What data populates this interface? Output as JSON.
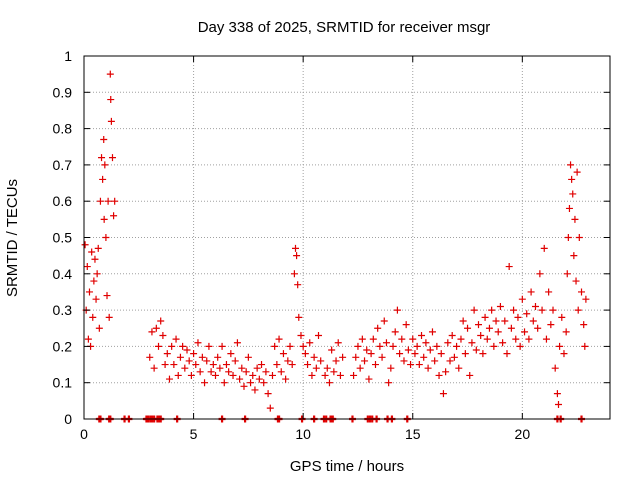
{
  "chart_data": {
    "type": "scatter",
    "title": "Day 338 of 2025, SRMTID for receiver msgr",
    "xlabel": "GPS time / hours",
    "ylabel": "SRMTID / TECUs",
    "xlim": [
      0,
      24
    ],
    "ylim": [
      0,
      1
    ],
    "xticks": [
      "0",
      "5",
      "10",
      "15",
      "20"
    ],
    "yticks": [
      "0",
      "0.1",
      "0.2",
      "0.3",
      "0.4",
      "0.5",
      "0.6",
      "0.7",
      "0.8",
      "0.9",
      "1"
    ],
    "grid": true,
    "marker": "+",
    "color": "#e00000",
    "series": [
      {
        "name": "SRMTID",
        "points": [
          [
            0.05,
            0.48
          ],
          [
            0.1,
            0.3
          ],
          [
            0.15,
            0.42
          ],
          [
            0.2,
            0.22
          ],
          [
            0.25,
            0.35
          ],
          [
            0.3,
            0.2
          ],
          [
            0.35,
            0.46
          ],
          [
            0.4,
            0.28
          ],
          [
            0.45,
            0.38
          ],
          [
            0.5,
            0.44
          ],
          [
            0.55,
            0.33
          ],
          [
            0.6,
            0.4
          ],
          [
            0.65,
            0.47
          ],
          [
            0.7,
            0.25
          ],
          [
            0.75,
            0.6
          ],
          [
            0.8,
            0.72
          ],
          [
            0.85,
            0.66
          ],
          [
            0.9,
            0.77
          ],
          [
            0.92,
            0.55
          ],
          [
            0.95,
            0.7
          ],
          [
            1.0,
            0.5
          ],
          [
            1.05,
            0.34
          ],
          [
            1.1,
            0.6
          ],
          [
            1.15,
            0.28
          ],
          [
            1.2,
            0.95
          ],
          [
            1.22,
            0.88
          ],
          [
            1.25,
            0.82
          ],
          [
            1.3,
            0.72
          ],
          [
            1.35,
            0.56
          ],
          [
            1.4,
            0.6
          ],
          [
            3.0,
            0.17
          ],
          [
            3.1,
            0.24
          ],
          [
            3.2,
            0.14
          ],
          [
            3.3,
            0.25
          ],
          [
            3.4,
            0.2
          ],
          [
            3.5,
            0.27
          ],
          [
            3.6,
            0.23
          ],
          [
            3.7,
            0.15
          ],
          [
            3.8,
            0.18
          ],
          [
            3.9,
            0.11
          ],
          [
            4.0,
            0.2
          ],
          [
            4.1,
            0.15
          ],
          [
            4.2,
            0.22
          ],
          [
            4.3,
            0.12
          ],
          [
            4.4,
            0.17
          ],
          [
            4.5,
            0.2
          ],
          [
            4.6,
            0.14
          ],
          [
            4.7,
            0.19
          ],
          [
            4.8,
            0.16
          ],
          [
            4.9,
            0.12
          ],
          [
            5.0,
            0.18
          ],
          [
            5.1,
            0.15
          ],
          [
            5.2,
            0.21
          ],
          [
            5.3,
            0.13
          ],
          [
            5.4,
            0.17
          ],
          [
            5.5,
            0.1
          ],
          [
            5.6,
            0.16
          ],
          [
            5.7,
            0.2
          ],
          [
            5.8,
            0.13
          ],
          [
            5.9,
            0.15
          ],
          [
            6.0,
            0.12
          ],
          [
            6.1,
            0.17
          ],
          [
            6.2,
            0.14
          ],
          [
            6.3,
            0.2
          ],
          [
            6.4,
            0.1
          ],
          [
            6.5,
            0.15
          ],
          [
            6.6,
            0.13
          ],
          [
            6.7,
            0.18
          ],
          [
            6.8,
            0.12
          ],
          [
            6.9,
            0.16
          ],
          [
            7.0,
            0.21
          ],
          [
            7.1,
            0.11
          ],
          [
            7.2,
            0.14
          ],
          [
            7.3,
            0.09
          ],
          [
            7.4,
            0.13
          ],
          [
            7.5,
            0.17
          ],
          [
            7.6,
            0.1
          ],
          [
            7.7,
            0.12
          ],
          [
            7.8,
            0.08
          ],
          [
            7.9,
            0.14
          ],
          [
            8.0,
            0.11
          ],
          [
            8.1,
            0.15
          ],
          [
            8.2,
            0.1
          ],
          [
            8.3,
            0.13
          ],
          [
            8.4,
            0.07
          ],
          [
            8.5,
            0.03
          ],
          [
            8.6,
            0.12
          ],
          [
            8.7,
            0.2
          ],
          [
            8.8,
            0.15
          ],
          [
            8.9,
            0.22
          ],
          [
            9.0,
            0.13
          ],
          [
            9.1,
            0.18
          ],
          [
            9.2,
            0.11
          ],
          [
            9.3,
            0.16
          ],
          [
            9.4,
            0.2
          ],
          [
            9.5,
            0.15
          ],
          [
            9.6,
            0.4
          ],
          [
            9.65,
            0.47
          ],
          [
            9.7,
            0.45
          ],
          [
            9.75,
            0.37
          ],
          [
            9.8,
            0.28
          ],
          [
            9.9,
            0.23
          ],
          [
            10.0,
            0.2
          ],
          [
            10.1,
            0.18
          ],
          [
            10.2,
            0.15
          ],
          [
            10.3,
            0.21
          ],
          [
            10.4,
            0.12
          ],
          [
            10.5,
            0.17
          ],
          [
            10.6,
            0.14
          ],
          [
            10.7,
            0.23
          ],
          [
            10.8,
            0.16
          ],
          [
            11.0,
            0.12
          ],
          [
            11.1,
            0.14
          ],
          [
            11.2,
            0.1
          ],
          [
            11.3,
            0.19
          ],
          [
            11.4,
            0.13
          ],
          [
            11.5,
            0.16
          ],
          [
            11.6,
            0.21
          ],
          [
            11.7,
            0.12
          ],
          [
            11.8,
            0.17
          ],
          [
            12.3,
            0.12
          ],
          [
            12.4,
            0.17
          ],
          [
            12.5,
            0.2
          ],
          [
            12.6,
            0.14
          ],
          [
            12.7,
            0.22
          ],
          [
            12.8,
            0.16
          ],
          [
            12.9,
            0.19
          ],
          [
            13.0,
            0.11
          ],
          [
            13.1,
            0.18
          ],
          [
            13.2,
            0.22
          ],
          [
            13.3,
            0.15
          ],
          [
            13.4,
            0.25
          ],
          [
            13.5,
            0.2
          ],
          [
            13.6,
            0.17
          ],
          [
            13.7,
            0.27
          ],
          [
            13.8,
            0.21
          ],
          [
            13.9,
            0.1
          ],
          [
            14.0,
            0.14
          ],
          [
            14.1,
            0.2
          ],
          [
            14.2,
            0.24
          ],
          [
            14.3,
            0.3
          ],
          [
            14.4,
            0.18
          ],
          [
            14.5,
            0.22
          ],
          [
            14.6,
            0.16
          ],
          [
            14.7,
            0.26
          ],
          [
            14.8,
            0.19
          ],
          [
            14.9,
            0.15
          ],
          [
            15.0,
            0.22
          ],
          [
            15.1,
            0.18
          ],
          [
            15.2,
            0.2
          ],
          [
            15.3,
            0.15
          ],
          [
            15.4,
            0.23
          ],
          [
            15.5,
            0.17
          ],
          [
            15.6,
            0.21
          ],
          [
            15.7,
            0.14
          ],
          [
            15.8,
            0.19
          ],
          [
            15.9,
            0.24
          ],
          [
            16.0,
            0.16
          ],
          [
            16.1,
            0.2
          ],
          [
            16.2,
            0.12
          ],
          [
            16.3,
            0.18
          ],
          [
            16.4,
            0.07
          ],
          [
            16.5,
            0.13
          ],
          [
            16.6,
            0.21
          ],
          [
            16.7,
            0.16
          ],
          [
            16.8,
            0.23
          ],
          [
            16.9,
            0.17
          ],
          [
            17.0,
            0.2
          ],
          [
            17.1,
            0.14
          ],
          [
            17.2,
            0.22
          ],
          [
            17.3,
            0.27
          ],
          [
            17.4,
            0.18
          ],
          [
            17.5,
            0.25
          ],
          [
            17.6,
            0.12
          ],
          [
            17.7,
            0.21
          ],
          [
            17.8,
            0.3
          ],
          [
            17.9,
            0.19
          ],
          [
            18.0,
            0.26
          ],
          [
            18.1,
            0.23
          ],
          [
            18.2,
            0.18
          ],
          [
            18.3,
            0.28
          ],
          [
            18.4,
            0.22
          ],
          [
            18.5,
            0.25
          ],
          [
            18.6,
            0.3
          ],
          [
            18.7,
            0.2
          ],
          [
            18.8,
            0.27
          ],
          [
            18.9,
            0.24
          ],
          [
            19.0,
            0.31
          ],
          [
            19.1,
            0.21
          ],
          [
            19.2,
            0.27
          ],
          [
            19.3,
            0.18
          ],
          [
            19.4,
            0.42
          ],
          [
            19.5,
            0.25
          ],
          [
            19.6,
            0.3
          ],
          [
            19.7,
            0.22
          ],
          [
            19.8,
            0.28
          ],
          [
            19.9,
            0.2
          ],
          [
            20.0,
            0.33
          ],
          [
            20.1,
            0.24
          ],
          [
            20.2,
            0.29
          ],
          [
            20.3,
            0.22
          ],
          [
            20.4,
            0.35
          ],
          [
            20.5,
            0.27
          ],
          [
            20.6,
            0.31
          ],
          [
            20.7,
            0.25
          ],
          [
            20.8,
            0.4
          ],
          [
            20.9,
            0.3
          ],
          [
            21.0,
            0.47
          ],
          [
            21.1,
            0.22
          ],
          [
            21.2,
            0.35
          ],
          [
            21.3,
            0.26
          ],
          [
            21.4,
            0.3
          ],
          [
            21.5,
            0.14
          ],
          [
            21.6,
            0.07
          ],
          [
            21.65,
            0.04
          ],
          [
            21.7,
            0.2
          ],
          [
            21.8,
            0.28
          ],
          [
            21.9,
            0.18
          ],
          [
            22.0,
            0.24
          ],
          [
            22.05,
            0.4
          ],
          [
            22.1,
            0.5
          ],
          [
            22.15,
            0.58
          ],
          [
            22.2,
            0.7
          ],
          [
            22.25,
            0.66
          ],
          [
            22.3,
            0.62
          ],
          [
            22.35,
            0.45
          ],
          [
            22.4,
            0.55
          ],
          [
            22.45,
            0.38
          ],
          [
            22.5,
            0.68
          ],
          [
            22.55,
            0.3
          ],
          [
            22.6,
            0.5
          ],
          [
            22.7,
            0.35
          ],
          [
            22.8,
            0.26
          ],
          [
            22.85,
            0.2
          ],
          [
            22.9,
            0.33
          ]
        ],
        "zero_points": [
          0.7,
          0.75,
          1.15,
          1.2,
          1.85,
          2.05,
          2.85,
          2.9,
          2.95,
          3.05,
          3.1,
          3.2,
          3.35,
          3.45,
          3.5,
          4.25,
          6.3,
          7.35,
          8.85,
          8.9,
          9.95,
          10.5,
          10.95,
          11.05,
          11.25,
          11.3,
          11.35,
          12.25,
          12.95,
          13.05,
          13.15,
          13.35,
          13.85,
          14.05,
          14.75,
          21.6,
          21.75,
          22.7
        ]
      }
    ]
  }
}
